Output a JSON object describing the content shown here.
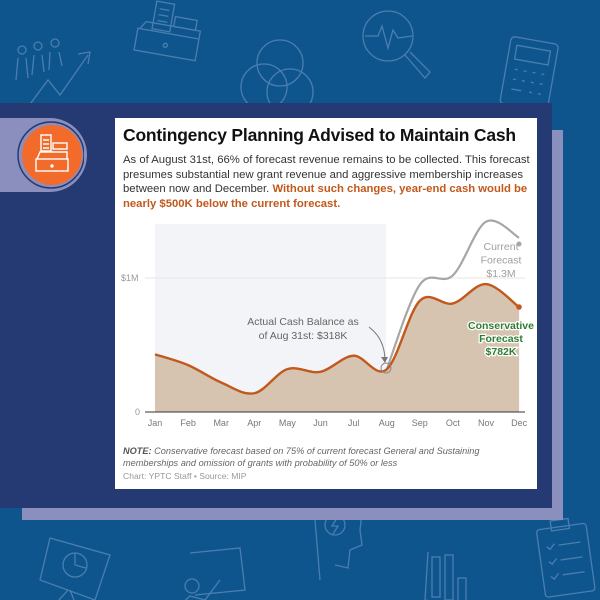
{
  "header": {
    "title": "Contingency Planning Advised to Maintain Cash",
    "description": "As of August 31st, 66% of forecast revenue remains to be collected. This forecast presumes substantial new grant revenue and aggressive membership increases between now and December. ",
    "description_highlight": "Without such changes, year-end cash would be nearly $500K below the current forecast."
  },
  "note": {
    "label": "NOTE:",
    "text": " Conservative forecast based on 75% of current forecast General and Sustaining memberships and omission of grants with probability of 50% or less"
  },
  "source": "Chart: YPTC Staff • Source: MIP",
  "badge_icon": "cash-register-icon",
  "background_icons": [
    "growth-people-icon",
    "cash-register-icon",
    "venn-diagram-icon",
    "analytics-magnifier-icon",
    "calculator-icon",
    "presentation-easel-icon",
    "teacher-whiteboard-icon",
    "idea-head-icon",
    "bar-chart-icon",
    "checklist-clipboard-icon"
  ],
  "colors": {
    "background": "#0f558d",
    "navy_panel": "#253a73",
    "lavender_panel": "#8a8fbd",
    "badge_orange": "#f26b2a",
    "conservative_line": "#c2581c",
    "conservative_fill": "#d6c4b0",
    "current_line": "#a6a6a6",
    "actual_shade": "#f3f4f7",
    "conservative_label": "#2e7d32",
    "highlight_text": "#c2581c"
  },
  "chart_data": {
    "type": "area",
    "title": "Contingency Planning Advised to Maintain Cash",
    "xlabel": "",
    "ylabel": "",
    "categories": [
      "Jan",
      "Feb",
      "Mar",
      "Apr",
      "May",
      "Jun",
      "Jul",
      "Aug",
      "Sep",
      "Oct",
      "Nov",
      "Dec"
    ],
    "yticks": [
      {
        "value": 0,
        "label": "0"
      },
      {
        "value": 1000000,
        "label": "$1M"
      }
    ],
    "ylim": [
      0,
      1450000
    ],
    "grid": true,
    "shaded_region": {
      "from": "Jan",
      "to": "Aug",
      "meaning": "actual"
    },
    "series": [
      {
        "name": "Conservative Forecast",
        "type": "area",
        "values": [
          430000,
          350000,
          220000,
          140000,
          320000,
          300000,
          420000,
          318000,
          830000,
          810000,
          955000,
          782000
        ]
      },
      {
        "name": "Current Forecast",
        "type": "line",
        "start": "Aug",
        "values": [
          null,
          null,
          null,
          null,
          null,
          null,
          null,
          318000,
          950000,
          1020000,
          1420000,
          1300000
        ]
      }
    ],
    "annotations": [
      {
        "text_lines": [
          "Actual Cash Balance as",
          "of Aug 31st: $318K"
        ],
        "x": "Aug",
        "value": 318000
      },
      {
        "text_lines": [
          "Current",
          "Forecast",
          "$1.3M"
        ],
        "x": "Dec",
        "value": 1300000
      },
      {
        "text_lines": [
          "Conservative",
          "Forecast",
          "$782K"
        ],
        "x": "Dec",
        "value": 782000
      }
    ]
  }
}
